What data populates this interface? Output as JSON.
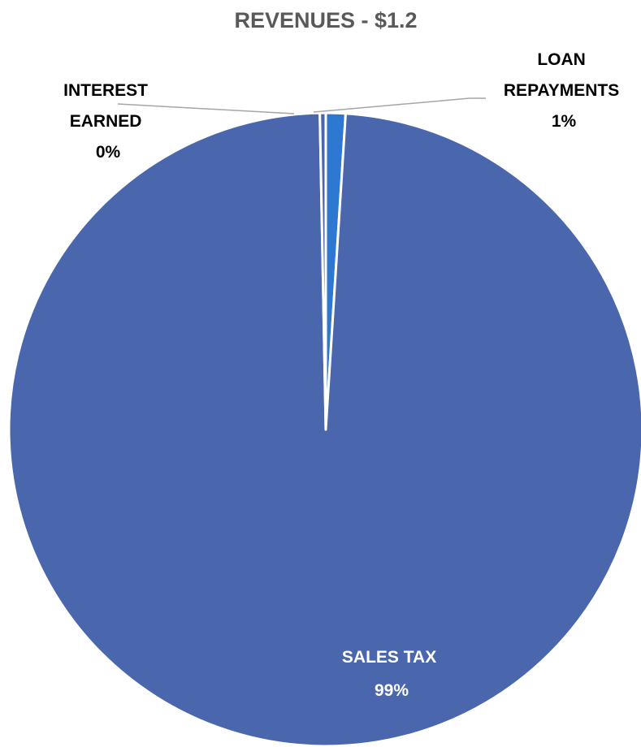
{
  "chart_data": {
    "type": "pie",
    "title": "REVENUES - $1.2",
    "slices": [
      {
        "name": "SALES TAX",
        "value": 98.7,
        "label": "99%",
        "color": "#4a67ad"
      },
      {
        "name": "LOAN REPAYMENTS",
        "value": 1.0,
        "label": "1%",
        "color": "#2f78d1"
      },
      {
        "name": "INTEREST EARNED",
        "value": 0.3,
        "label": "0%",
        "color": "#4a67ad"
      }
    ],
    "legend": "none",
    "start_angle": "12 o'clock, clockwise"
  }
}
